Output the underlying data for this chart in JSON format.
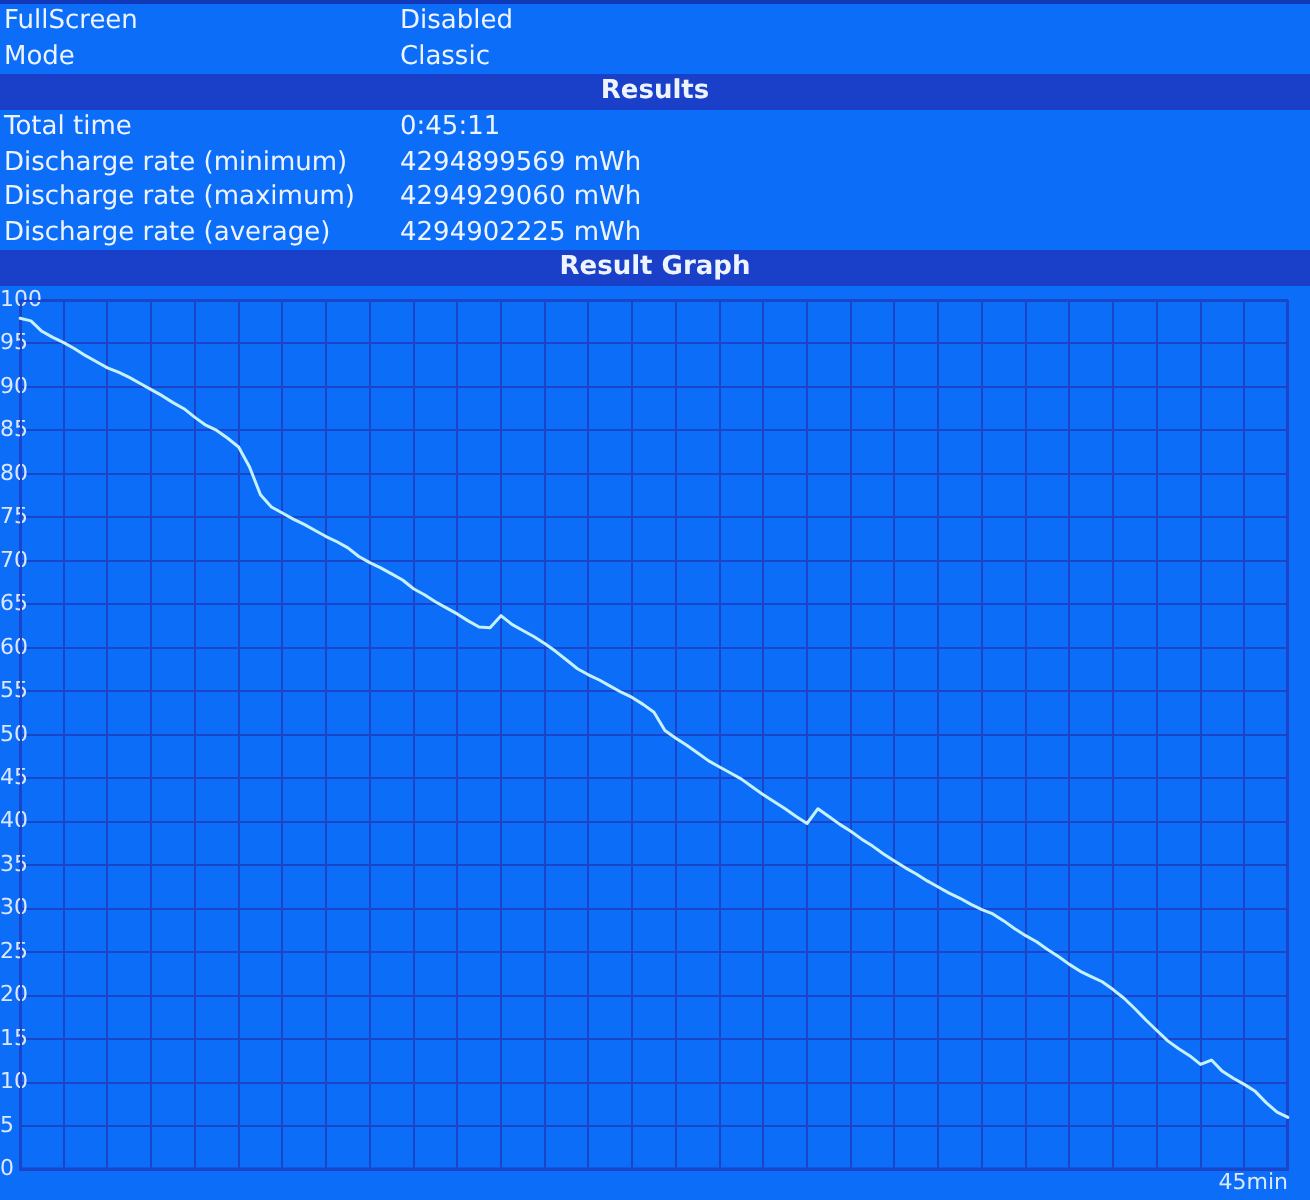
{
  "chart_data": {
    "type": "line",
    "title": "Result Graph",
    "subtitle": "Results",
    "annotations": [
      "FullScreen",
      "Disabled",
      "Mode",
      "Classic",
      "Total time",
      "0:45:11",
      "Discharge rate (minimum)",
      "4294899569 mWh",
      "Discharge rate (maximum)",
      "4294929060 mWh",
      "Discharge rate (average)",
      "4294902225 mWh"
    ],
    "xlabel": "45min",
    "categories": [
      null,
      null,
      null,
      null,
      null,
      null,
      null,
      null,
      null,
      null,
      null,
      null,
      null,
      null,
      null,
      null,
      null,
      null,
      null,
      null,
      null,
      null,
      null,
      null,
      null,
      null,
      null,
      null,
      null,
      null,
      null,
      null,
      null,
      null,
      null,
      null,
      null,
      null,
      null,
      null,
      null,
      null,
      null,
      null,
      null,
      null,
      null,
      null,
      null,
      null,
      null,
      null,
      null,
      null,
      null,
      null,
      null,
      null,
      null,
      null,
      null,
      null,
      null,
      null,
      null,
      null,
      null,
      null,
      null,
      null,
      null,
      null,
      null,
      null,
      null,
      null,
      null,
      null,
      null,
      null,
      null,
      null,
      null,
      null,
      null,
      null,
      null,
      null,
      null,
      null,
      null,
      null,
      null,
      null,
      null,
      null,
      null,
      null,
      null,
      null,
      null,
      null,
      null,
      null,
      null,
      null,
      null,
      null,
      null,
      null,
      null,
      null,
      null,
      null,
      null,
      null,
      null
    ],
    "series": [
      {
        "color": "#c6f1ff",
        "values": [
          97.9,
          97.6,
          96.4,
          95.7,
          95.1,
          94.4,
          93.6,
          92.9,
          92.2,
          91.7,
          91.1,
          90.4,
          89.7,
          89,
          88.2,
          87.5,
          86.5,
          85.6,
          85,
          84.1,
          83.1,
          80.8,
          77.6,
          76.2,
          75.5,
          74.8,
          74.2,
          73.5,
          72.8,
          72.2,
          71.5,
          70.5,
          69.8,
          69.2,
          68.5,
          67.8,
          66.8,
          66.1,
          65.3,
          64.6,
          63.9,
          63.1,
          62.4,
          62.3,
          63.7,
          62.7,
          62,
          61.3,
          60.5,
          59.6,
          58.6,
          57.6,
          56.9,
          56.3,
          55.6,
          54.9,
          54.3,
          53.5,
          52.6,
          50.5,
          49.6,
          48.8,
          47.9,
          47,
          46.3,
          45.6,
          44.9,
          44,
          43.1,
          42.3,
          41.5,
          40.6,
          39.8,
          41.5,
          40.6,
          39.7,
          38.9,
          38,
          37.2,
          36.3,
          35.5,
          34.7,
          34,
          33.2,
          32.5,
          31.8,
          31.2,
          30.5,
          29.9,
          29.4,
          28.6,
          27.7,
          26.9,
          26.2,
          25.3,
          24.5,
          23.6,
          22.8,
          22.2,
          21.6,
          20.7,
          19.7,
          18.5,
          17.2,
          16,
          14.8,
          13.9,
          13.1,
          12.1,
          12.6,
          11.3,
          10.5,
          9.8,
          9,
          7.7,
          6.6,
          6
        ]
      }
    ],
    "ylim": [
      0,
      100
    ],
    "yticks": [
      0,
      5,
      10,
      15,
      20,
      25,
      30,
      35,
      40,
      45,
      50,
      55,
      60,
      65,
      70,
      75,
      80,
      85,
      90,
      95,
      100
    ],
    "tick_labels": "y",
    "grid": true
  }
}
